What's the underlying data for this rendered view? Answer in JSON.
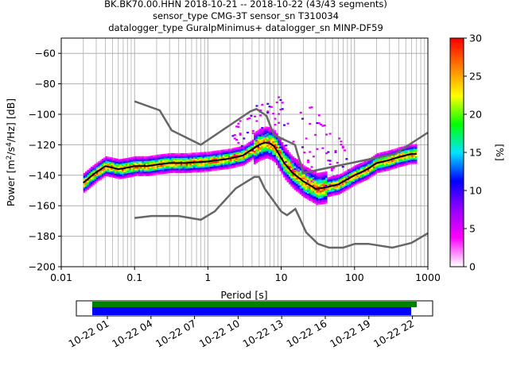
{
  "title_lines": [
    "BK.BK70.00.HHN   2018-10-21 -- 2018-10-22  (43/43 segments)",
    "sensor_type CMG-3T sensor_sn T310034",
    "datalogger_type GuralpMinimus+ datalogger_sn MINP-DF59"
  ],
  "chart_data": {
    "type": "heatmap",
    "xlabel": "Period [s]",
    "ylabel": "Power [m²/s⁴/Hz] [dB]",
    "xscale": "log",
    "xlim": [
      0.01,
      1000
    ],
    "ylim": [
      -200,
      -50
    ],
    "xticks": [
      {
        "v": 0.01,
        "label": "0.01"
      },
      {
        "v": 0.1,
        "label": "0.1"
      },
      {
        "v": 1,
        "label": "1"
      },
      {
        "v": 10,
        "label": "10"
      },
      {
        "v": 100,
        "label": "100"
      },
      {
        "v": 1000,
        "label": "1000"
      }
    ],
    "yticks": [
      {
        "v": -60,
        "label": "−60"
      },
      {
        "v": -80,
        "label": "−80"
      },
      {
        "v": -100,
        "label": "−100"
      },
      {
        "v": -120,
        "label": "−120"
      },
      {
        "v": -140,
        "label": "−140"
      },
      {
        "v": -160,
        "label": "−160"
      },
      {
        "v": -180,
        "label": "−180"
      },
      {
        "v": -200,
        "label": "−200"
      }
    ],
    "grid": true,
    "colorbar": {
      "label": "[%]",
      "range": [
        0,
        30
      ],
      "ticks": [
        {
          "v": 0,
          "label": "0"
        },
        {
          "v": 5,
          "label": "5"
        },
        {
          "v": 10,
          "label": "10"
        },
        {
          "v": 15,
          "label": "15"
        },
        {
          "v": 20,
          "label": "20"
        },
        {
          "v": 25,
          "label": "25"
        },
        {
          "v": 30,
          "label": "30"
        }
      ],
      "colors": [
        "#ffffff",
        "#ff00ff",
        "#9400ff",
        "#0000ff",
        "#00e5ff",
        "#00ff00",
        "#ffff00",
        "#ff8000",
        "#ff0000"
      ]
    },
    "median": [
      [
        0.02,
        -145
      ],
      [
        0.025,
        -141
      ],
      [
        0.03,
        -138
      ],
      [
        0.04,
        -134
      ],
      [
        0.05,
        -135
      ],
      [
        0.06,
        -136
      ],
      [
        0.08,
        -135
      ],
      [
        0.1,
        -134
      ],
      [
        0.15,
        -134
      ],
      [
        0.2,
        -133
      ],
      [
        0.3,
        -132
      ],
      [
        0.5,
        -132
      ],
      [
        1,
        -131
      ],
      [
        2,
        -129
      ],
      [
        3,
        -127
      ],
      [
        4,
        -123
      ],
      [
        5,
        -120
      ],
      [
        6,
        -118.5
      ],
      [
        7,
        -119
      ],
      [
        8,
        -121
      ],
      [
        9,
        -125
      ],
      [
        11,
        -132
      ],
      [
        14,
        -138
      ],
      [
        20,
        -144
      ],
      [
        30,
        -149
      ],
      [
        40,
        -148
      ],
      [
        60,
        -146
      ],
      [
        100,
        -140
      ],
      [
        150,
        -136
      ],
      [
        200,
        -132
      ],
      [
        300,
        -130
      ],
      [
        400,
        -128
      ],
      [
        600,
        -126
      ],
      [
        700,
        -126
      ]
    ],
    "nhnm": [
      [
        0.1,
        -91.5
      ],
      [
        0.22,
        -97.4
      ],
      [
        0.32,
        -110.5
      ],
      [
        0.8,
        -120
      ],
      [
        3.8,
        -98
      ],
      [
        4.6,
        -96.5
      ],
      [
        6.3,
        -101
      ],
      [
        7.9,
        -113.5
      ],
      [
        15.4,
        -120
      ],
      [
        20,
        -138.5
      ],
      [
        354.8,
        -126
      ],
      [
        1000,
        -112
      ]
    ],
    "nlnm": [
      [
        0.1,
        -168
      ],
      [
        0.17,
        -166.7
      ],
      [
        0.4,
        -166.7
      ],
      [
        0.8,
        -169.2
      ],
      [
        1.24,
        -163.7
      ],
      [
        2.4,
        -148.6
      ],
      [
        4.3,
        -141.1
      ],
      [
        5,
        -141.1
      ],
      [
        6,
        -149
      ],
      [
        10,
        -163.8
      ],
      [
        12,
        -166.2
      ],
      [
        15.6,
        -162.1
      ],
      [
        21.9,
        -177.5
      ],
      [
        31.6,
        -185
      ],
      [
        45,
        -187.5
      ],
      [
        70,
        -187.5
      ],
      [
        101,
        -185
      ],
      [
        154,
        -185
      ],
      [
        328,
        -187.5
      ],
      [
        600,
        -184.4
      ],
      [
        1000,
        -178
      ]
    ],
    "density_period_range": [
      0.02,
      700
    ],
    "timeline": {
      "tick_labels": [
        "10-22 01",
        "10-22 04",
        "10-22 07",
        "10-22 10",
        "10-22 13",
        "10-22 16",
        "10-22 19",
        "10-22 22"
      ],
      "data_coverage_color": "#008000",
      "psd_coverage_color": "#0000ff"
    }
  }
}
